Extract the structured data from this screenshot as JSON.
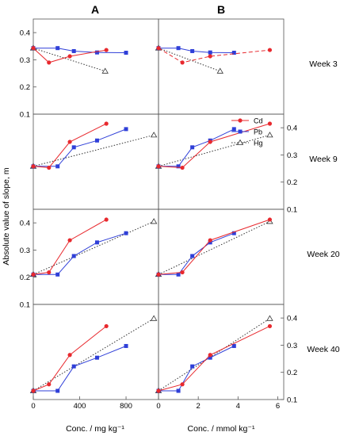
{
  "figure": {
    "column_titles": [
      "A",
      "B"
    ],
    "ylabel": "Absolute value of slope, m",
    "xlabels": [
      "Conc. / mg kg⁻¹",
      "Conc. / mmol kg⁻¹"
    ],
    "row_labels": [
      "Week 3",
      "Week 9",
      "Week 20",
      "Week 40"
    ],
    "legend": [
      {
        "name": "Cd",
        "color": "#e8292e",
        "marker": "circle",
        "dash": "solid"
      },
      {
        "name": "Pb",
        "color": "#2f3fd8",
        "marker": "square",
        "dash": "solid"
      },
      {
        "name": "Hg",
        "color": "#333333",
        "marker": "triangle-open",
        "dash": "dotted"
      }
    ],
    "left_yticks": [
      "0.1",
      "0.2",
      "0.3",
      "0.4"
    ],
    "right_yticks": [
      "0.1",
      "0.2",
      "0.3",
      "0.4"
    ],
    "xticks_A": [
      "0",
      "400",
      "800"
    ],
    "xticks_B": [
      "0",
      "2",
      "4",
      "6"
    ]
  },
  "chart_data": [
    {
      "type": "line",
      "panel": "A",
      "row": "Week 3",
      "xlim": [
        0,
        1080
      ],
      "ylim": [
        0.1,
        0.45
      ],
      "series": [
        {
          "name": "Cd",
          "x": [
            0,
            135,
            315,
            630
          ],
          "y": [
            0.343,
            0.29,
            0.313,
            0.336
          ]
        },
        {
          "name": "Pb",
          "x": [
            0,
            210,
            350,
            550,
            800
          ],
          "y": [
            0.343,
            0.343,
            0.332,
            0.327,
            0.326
          ]
        },
        {
          "name": "Hg",
          "x": [
            0,
            620
          ],
          "y": [
            0.343,
            0.258
          ]
        }
      ]
    },
    {
      "type": "line",
      "panel": "B",
      "row": "Week 3",
      "xlim": [
        0,
        6.3
      ],
      "ylim": [
        0.1,
        0.45
      ],
      "series": [
        {
          "name": "Cd",
          "x": [
            0,
            1.2,
            2.6,
            5.6
          ],
          "y": [
            0.343,
            0.29,
            0.313,
            0.336
          ]
        },
        {
          "name": "Pb",
          "x": [
            0,
            1,
            1.7,
            2.6,
            3.8
          ],
          "y": [
            0.343,
            0.343,
            0.332,
            0.327,
            0.326
          ]
        },
        {
          "name": "Hg",
          "x": [
            0,
            3.1
          ],
          "y": [
            0.343,
            0.258
          ]
        }
      ]
    },
    {
      "type": "line",
      "panel": "A",
      "row": "Week 9",
      "xlim": [
        0,
        1080
      ],
      "ylim": [
        0.1,
        0.45
      ],
      "series": [
        {
          "name": "Cd",
          "x": [
            0,
            135,
            315,
            630
          ],
          "y": [
            0.258,
            0.253,
            0.348,
            0.415
          ]
        },
        {
          "name": "Pb",
          "x": [
            0,
            210,
            350,
            550,
            800
          ],
          "y": [
            0.258,
            0.258,
            0.328,
            0.353,
            0.395
          ]
        },
        {
          "name": "Hg",
          "x": [
            0,
            1040
          ],
          "y": [
            0.258,
            0.373
          ]
        }
      ]
    },
    {
      "type": "line",
      "panel": "B",
      "row": "Week 9",
      "xlim": [
        0,
        6.3
      ],
      "ylim": [
        0.1,
        0.45
      ],
      "series": [
        {
          "name": "Cd",
          "x": [
            0,
            1.2,
            2.6,
            5.6
          ],
          "y": [
            0.258,
            0.253,
            0.348,
            0.415
          ]
        },
        {
          "name": "Pb",
          "x": [
            0,
            1,
            1.7,
            2.6,
            3.8
          ],
          "y": [
            0.258,
            0.258,
            0.328,
            0.353,
            0.395
          ]
        },
        {
          "name": "Hg",
          "x": [
            0,
            5.6
          ],
          "y": [
            0.258,
            0.373
          ]
        }
      ]
    },
    {
      "type": "line",
      "panel": "A",
      "row": "Week 20",
      "xlim": [
        0,
        1080
      ],
      "ylim": [
        0.1,
        0.45
      ],
      "series": [
        {
          "name": "Cd",
          "x": [
            0,
            135,
            315,
            630
          ],
          "y": [
            0.21,
            0.218,
            0.336,
            0.412
          ]
        },
        {
          "name": "Pb",
          "x": [
            0,
            210,
            350,
            550,
            800
          ],
          "y": [
            0.21,
            0.21,
            0.278,
            0.328,
            0.362
          ]
        },
        {
          "name": "Hg",
          "x": [
            0,
            1040
          ],
          "y": [
            0.21,
            0.405
          ]
        }
      ]
    },
    {
      "type": "line",
      "panel": "B",
      "row": "Week 20",
      "xlim": [
        0,
        6.3
      ],
      "ylim": [
        0.1,
        0.45
      ],
      "series": [
        {
          "name": "Cd",
          "x": [
            0,
            1.2,
            2.6,
            5.6
          ],
          "y": [
            0.21,
            0.218,
            0.336,
            0.412
          ]
        },
        {
          "name": "Pb",
          "x": [
            0,
            1,
            1.7,
            2.6,
            3.8
          ],
          "y": [
            0.21,
            0.21,
            0.278,
            0.328,
            0.362
          ]
        },
        {
          "name": "Hg",
          "x": [
            0,
            5.6
          ],
          "y": [
            0.21,
            0.405
          ]
        }
      ]
    },
    {
      "type": "line",
      "panel": "A",
      "row": "Week 40",
      "xlim": [
        0,
        1080
      ],
      "ylim": [
        0.1,
        0.45
      ],
      "series": [
        {
          "name": "Cd",
          "x": [
            0,
            135,
            315,
            630
          ],
          "y": [
            0.132,
            0.156,
            0.264,
            0.37
          ]
        },
        {
          "name": "Pb",
          "x": [
            0,
            210,
            350,
            550,
            800
          ],
          "y": [
            0.132,
            0.132,
            0.222,
            0.254,
            0.297
          ]
        },
        {
          "name": "Hg",
          "x": [
            0,
            1040
          ],
          "y": [
            0.132,
            0.398
          ]
        }
      ]
    },
    {
      "type": "line",
      "panel": "B",
      "row": "Week 40",
      "xlim": [
        0,
        6.3
      ],
      "ylim": [
        0.1,
        0.45
      ],
      "series": [
        {
          "name": "Cd",
          "x": [
            0,
            1.2,
            2.6,
            5.6
          ],
          "y": [
            0.132,
            0.156,
            0.264,
            0.37
          ]
        },
        {
          "name": "Pb",
          "x": [
            0,
            1,
            1.7,
            2.6,
            3.8
          ],
          "y": [
            0.132,
            0.132,
            0.222,
            0.254,
            0.297
          ]
        },
        {
          "name": "Hg",
          "x": [
            0,
            5.6
          ],
          "y": [
            0.132,
            0.398
          ]
        }
      ]
    }
  ]
}
